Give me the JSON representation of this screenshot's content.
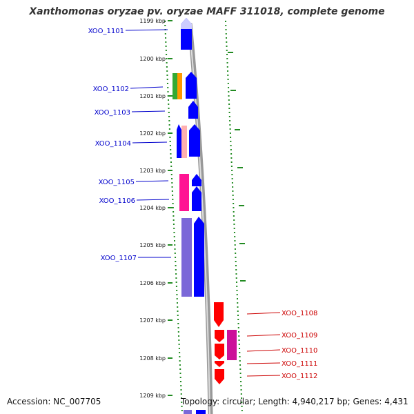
{
  "title": "Xanthomonas oryzae pv. oryzae MAFF 311018, complete genome",
  "accession": "Accession: NC_007705",
  "topology": "Topology: circular; Length: 4,940,217 bp; Genes: 4,431",
  "colors": {
    "forward": "#0000ff",
    "reverse": "#ff0000",
    "forward_label": "#0000cc",
    "reverse_label": "#cc0000",
    "backbone": "#999999",
    "tick": "#228b22"
  },
  "scale": {
    "unit": "kbp",
    "ticks": [
      {
        "kbp": 1199,
        "label": "1199 kbp"
      },
      {
        "kbp": 1200,
        "label": "1200 kbp"
      },
      {
        "kbp": 1201,
        "label": "1201 kbp"
      },
      {
        "kbp": 1202,
        "label": "1202 kbp"
      },
      {
        "kbp": 1203,
        "label": "1203 kbp"
      },
      {
        "kbp": 1204,
        "label": "1204 kbp"
      },
      {
        "kbp": 1205,
        "label": "1205 kbp"
      },
      {
        "kbp": 1206,
        "label": "1206 kbp"
      },
      {
        "kbp": 1207,
        "label": "1207 kbp"
      },
      {
        "kbp": 1208,
        "label": "1208 kbp"
      },
      {
        "kbp": 1209,
        "label": "1209 kbp"
      }
    ]
  },
  "genes": [
    {
      "name": "XOO_1101",
      "strand": "+"
    },
    {
      "name": "XOO_1102",
      "strand": "+"
    },
    {
      "name": "XOO_1103",
      "strand": "+"
    },
    {
      "name": "XOO_1104",
      "strand": "+"
    },
    {
      "name": "XOO_1105",
      "strand": "+"
    },
    {
      "name": "XOO_1106",
      "strand": "+"
    },
    {
      "name": "XOO_1107",
      "strand": "+"
    },
    {
      "name": "XOO_1108",
      "strand": "-"
    },
    {
      "name": "XOO_1109",
      "strand": "-"
    },
    {
      "name": "XOO_1110",
      "strand": "-"
    },
    {
      "name": "XOO_1111",
      "strand": "-"
    },
    {
      "name": "XOO_1112",
      "strand": "-"
    }
  ]
}
